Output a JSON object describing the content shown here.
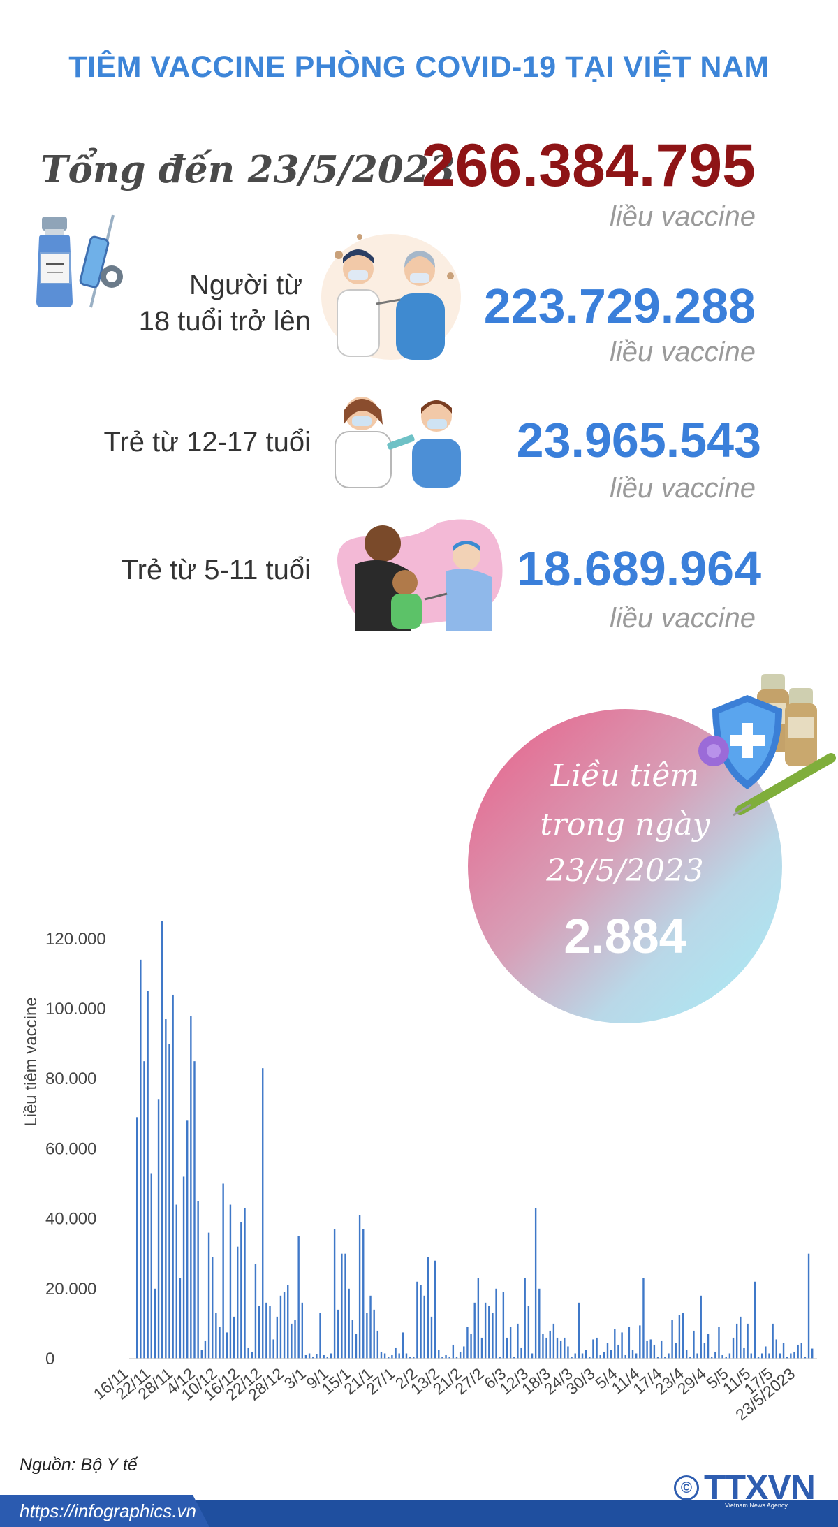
{
  "header": {
    "title": "TIÊM VACCINE PHÒNG COVID-19 TẠI VIỆT NAM"
  },
  "summary": {
    "total_label": "Tổng đến 23/5/2023",
    "total_value": "266.384.795",
    "unit": "liều vaccine",
    "groups": [
      {
        "label_line1": "Người từ",
        "label_line2": "18 tuổi trở lên",
        "value": "223.729.288",
        "unit": "liều vaccine"
      },
      {
        "label_line1": "Trẻ từ 12-17 tuổi",
        "label_line2": "",
        "value": "23.965.543",
        "unit": "liều vaccine"
      },
      {
        "label_line1": "Trẻ từ 5-11 tuổi",
        "label_line2": "",
        "value": "18.689.964",
        "unit": "liều vaccine"
      }
    ]
  },
  "bubble": {
    "line1": "Liều tiêm",
    "line2": "trong ngày",
    "line3": "23/5/2023",
    "value": "2.884"
  },
  "chart_data": {
    "type": "bar",
    "title": "",
    "xlabel": "",
    "ylabel": "Liều tiêm vaccine",
    "ylim": [
      0,
      125000
    ],
    "yticks": [
      "0",
      "20.000",
      "40.000",
      "60.000",
      "80.000",
      "100.000",
      "120.000"
    ],
    "ytick_values": [
      0,
      20000,
      40000,
      60000,
      80000,
      100000,
      120000
    ],
    "xtick_labels": [
      "16/11",
      "22/11",
      "28/11",
      "4/12",
      "10/12",
      "16/12",
      "22/12",
      "28/12",
      "3/1",
      "9/1",
      "15/1",
      "21/1",
      "27/1",
      "2/2",
      "13/2",
      "21/2",
      "27/2",
      "6/3",
      "12/3",
      "18/3",
      "24/3",
      "30/3",
      "5/4",
      "11/4",
      "17/4",
      "23/4",
      "29/4",
      "5/5",
      "11/5",
      "17/5",
      "23/5/2023"
    ],
    "color": "#3f78c8",
    "series": [
      {
        "values": [
          69000,
          114000,
          85000,
          105000,
          53000,
          20000,
          74000,
          125000,
          97000,
          90000,
          104000,
          44000,
          23000,
          52000,
          68000,
          98000,
          85000,
          45000,
          2500,
          5000,
          36000,
          29000,
          13000,
          9000,
          50000,
          7500,
          44000,
          12000,
          32000,
          39000,
          43000,
          3000,
          2000,
          27000,
          15000,
          83000,
          16000,
          15000,
          5500,
          12000,
          18000,
          19000,
          21000,
          10000,
          11000,
          35000,
          16000,
          1000,
          1500,
          500,
          1200,
          13000,
          1000,
          500,
          1500,
          37000,
          14000,
          30000,
          30000,
          20000,
          11000,
          7000,
          41000,
          37000,
          13000,
          18000,
          14000,
          8000,
          2000,
          1500,
          500,
          1000,
          3000,
          1500,
          7500,
          1500,
          500,
          500,
          22000,
          21000,
          18000,
          29000,
          12000,
          28000,
          2500,
          500,
          1000,
          500,
          4000,
          500,
          2000,
          3500,
          9000,
          7000,
          16000,
          23000,
          6000,
          16000,
          15000,
          13000,
          20000,
          500,
          19000,
          6000,
          9000,
          500,
          10000,
          3000,
          23000,
          15000,
          1500,
          43000,
          20000,
          7000,
          6000,
          8000,
          10000,
          6000,
          5000,
          6000,
          3500,
          500,
          1500,
          16000,
          1500,
          2500,
          500,
          5500,
          6000,
          1000,
          2000,
          4500,
          2500,
          8500,
          4000,
          7500,
          1000,
          9000,
          2500,
          1500,
          9500,
          23000,
          5000,
          5500,
          4000,
          500,
          5000,
          500,
          1500,
          11000,
          4500,
          12500,
          13000,
          2500,
          500,
          8000,
          1500,
          18000,
          4500,
          7000,
          500,
          2000,
          9000,
          1000,
          500,
          1500,
          6000,
          10000,
          12000,
          3000,
          10000,
          1500,
          22000,
          500,
          1500,
          3500,
          1500,
          10000,
          5500,
          1500,
          4500,
          500,
          1500,
          2000,
          4000,
          4500,
          500,
          30000,
          2884
        ]
      }
    ]
  }
}
